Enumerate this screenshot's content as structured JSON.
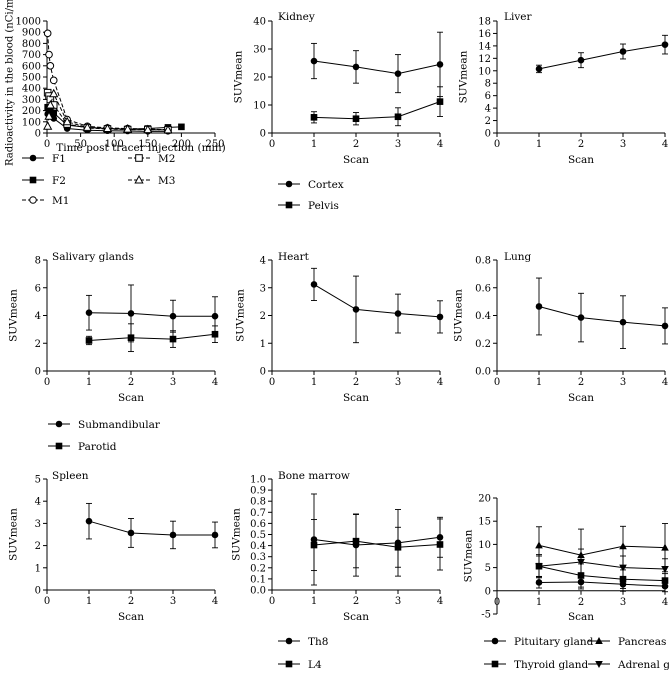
{
  "chart_data": [
    {
      "type": "line",
      "title": "",
      "xlabel": "Time post tracer injection (min)",
      "ylabel": "Radioactivity in the blood (nCi/mL)",
      "xlim": [
        0,
        250
      ],
      "ylim": [
        0,
        1000
      ],
      "xticks": [
        0,
        50,
        100,
        150,
        200,
        250
      ],
      "yticks": [
        0,
        100,
        200,
        300,
        400,
        500,
        600,
        700,
        800,
        900,
        1000
      ],
      "legend": [
        "F1",
        "M2",
        "F2",
        "M3",
        "M1"
      ],
      "series": [
        {
          "name": "F1",
          "marker": "circle",
          "line": "solid",
          "x": [
            1,
            3,
            5,
            10,
            30,
            60,
            90,
            120,
            150,
            180
          ],
          "y": [
            170,
            160,
            150,
            130,
            40,
            25,
            20,
            18,
            15,
            15
          ]
        },
        {
          "name": "F2",
          "marker": "square",
          "line": "solid",
          "x": [
            1,
            3,
            5,
            10,
            30,
            60,
            90,
            120,
            150,
            180,
            200
          ],
          "y": [
            230,
            220,
            210,
            180,
            70,
            50,
            40,
            35,
            40,
            50,
            55
          ]
        },
        {
          "name": "M1",
          "marker": "open-circle",
          "line": "dashed",
          "x": [
            1,
            3,
            5,
            10,
            30,
            60,
            90,
            120,
            150,
            180
          ],
          "y": [
            890,
            700,
            600,
            470,
            120,
            60,
            45,
            40,
            35,
            30
          ]
        },
        {
          "name": "M2",
          "marker": "open-square",
          "line": "dashed",
          "x": [
            1,
            3,
            5,
            10,
            30,
            60,
            90,
            120,
            150,
            180
          ],
          "y": [
            360,
            330,
            300,
            250,
            80,
            45,
            35,
            30,
            30,
            28
          ]
        },
        {
          "name": "M3",
          "marker": "open-triangle",
          "line": "dashed",
          "x": [
            1,
            3,
            5,
            10,
            30,
            60,
            90,
            120,
            150,
            180
          ],
          "y": [
            60,
            150,
            250,
            350,
            100,
            50,
            40,
            35,
            30,
            28
          ]
        }
      ]
    },
    {
      "type": "line",
      "title": "Kidney",
      "xlabel": "Scan",
      "ylabel": "SUVmean",
      "xlim": [
        0,
        4
      ],
      "ylim": [
        0,
        40
      ],
      "xticks": [
        0,
        1,
        2,
        3,
        4
      ],
      "yticks": [
        0,
        10,
        20,
        30,
        40
      ],
      "legend": [
        "Cortex",
        "Pelvis"
      ],
      "series": [
        {
          "name": "Cortex",
          "marker": "circle",
          "x": [
            1,
            2,
            3,
            4
          ],
          "y": [
            25.7,
            23.6,
            21.2,
            24.5
          ],
          "err": [
            6.3,
            5.8,
            6.8,
            11.5
          ]
        },
        {
          "name": "Pelvis",
          "marker": "square",
          "x": [
            1,
            2,
            3,
            4
          ],
          "y": [
            5.6,
            5.1,
            5.8,
            11.2
          ],
          "err": [
            2.0,
            2.2,
            3.2,
            5.3
          ]
        }
      ]
    },
    {
      "type": "line",
      "title": "Liver",
      "xlabel": "Scan",
      "ylabel": "SUVmean",
      "xlim": [
        0,
        4
      ],
      "ylim": [
        0,
        18
      ],
      "xticks": [
        0,
        1,
        2,
        3,
        4
      ],
      "yticks": [
        0,
        2,
        4,
        6,
        8,
        10,
        12,
        14,
        16,
        18
      ],
      "series": [
        {
          "name": "Liver",
          "marker": "circle",
          "x": [
            1,
            2,
            3,
            4
          ],
          "y": [
            10.3,
            11.7,
            13.1,
            14.2
          ],
          "err": [
            0.6,
            1.2,
            1.2,
            1.5
          ]
        }
      ]
    },
    {
      "type": "line",
      "title": "Salivary glands",
      "xlabel": "Scan",
      "ylabel": "SUVmean",
      "xlim": [
        0,
        4
      ],
      "ylim": [
        0,
        8
      ],
      "xticks": [
        0,
        1,
        2,
        3,
        4
      ],
      "yticks": [
        0,
        2,
        4,
        6,
        8
      ],
      "legend": [
        "Submandibular",
        "Parotid"
      ],
      "series": [
        {
          "name": "Submandibular",
          "marker": "circle",
          "x": [
            1,
            2,
            3,
            4
          ],
          "y": [
            4.2,
            4.15,
            3.95,
            3.95
          ],
          "err": [
            1.25,
            2.05,
            1.15,
            1.4
          ]
        },
        {
          "name": "Parotid",
          "marker": "square",
          "x": [
            1,
            2,
            3,
            4
          ],
          "y": [
            2.2,
            2.4,
            2.3,
            2.65
          ],
          "err": [
            0.3,
            1.0,
            0.6,
            0.6
          ]
        }
      ]
    },
    {
      "type": "line",
      "title": "Heart",
      "xlabel": "Scan",
      "ylabel": "SUVmean",
      "xlim": [
        0,
        4
      ],
      "ylim": [
        0,
        4
      ],
      "xticks": [
        0,
        1,
        2,
        3,
        4
      ],
      "yticks": [
        0,
        1,
        2,
        3,
        4
      ],
      "series": [
        {
          "name": "Heart",
          "marker": "circle",
          "x": [
            1,
            2,
            3,
            4
          ],
          "y": [
            3.12,
            2.22,
            2.07,
            1.95
          ],
          "err": [
            0.58,
            1.2,
            0.7,
            0.58
          ]
        }
      ]
    },
    {
      "type": "line",
      "title": "Lung",
      "xlabel": "Scan",
      "ylabel": "SUVmean",
      "xlim": [
        0,
        4
      ],
      "ylim": [
        0,
        0.8
      ],
      "xticks": [
        0,
        1,
        2,
        3,
        4
      ],
      "yticks": [
        0.0,
        0.2,
        0.4,
        0.6,
        0.8
      ],
      "series": [
        {
          "name": "Lung",
          "marker": "circle",
          "x": [
            1,
            2,
            3,
            4
          ],
          "y": [
            0.465,
            0.385,
            0.352,
            0.325
          ],
          "err": [
            0.205,
            0.175,
            0.19,
            0.13
          ]
        }
      ]
    },
    {
      "type": "line",
      "title": "Spleen",
      "xlabel": "Scan",
      "ylabel": "SUVmean",
      "xlim": [
        0,
        4
      ],
      "ylim": [
        0,
        5
      ],
      "xticks": [
        0,
        1,
        2,
        3,
        4
      ],
      "yticks": [
        0,
        1,
        2,
        3,
        4,
        5
      ],
      "series": [
        {
          "name": "Spleen",
          "marker": "circle",
          "x": [
            1,
            2,
            3,
            4
          ],
          "y": [
            3.1,
            2.57,
            2.48,
            2.48
          ],
          "err": [
            0.8,
            0.65,
            0.62,
            0.58
          ]
        }
      ]
    },
    {
      "type": "line",
      "title": "Bone marrow",
      "xlabel": "Scan",
      "ylabel": "SUVmean",
      "xlim": [
        0,
        4
      ],
      "ylim": [
        0,
        1.0
      ],
      "xticks": [
        0,
        1,
        2,
        3,
        4
      ],
      "yticks": [
        0.0,
        0.1,
        0.2,
        0.3,
        0.4,
        0.5,
        0.6,
        0.7,
        0.8,
        0.9,
        1.0
      ],
      "legend": [
        "Th8",
        "L4"
      ],
      "series": [
        {
          "name": "Th8",
          "marker": "circle",
          "x": [
            1,
            2,
            3,
            4
          ],
          "y": [
            0.455,
            0.405,
            0.425,
            0.475
          ],
          "err": [
            0.41,
            0.28,
            0.3,
            0.18
          ]
        },
        {
          "name": "L4",
          "marker": "square",
          "x": [
            1,
            2,
            3,
            4
          ],
          "y": [
            0.405,
            0.44,
            0.385,
            0.41
          ],
          "err": [
            0.23,
            0.24,
            0.18,
            0.23
          ]
        }
      ]
    },
    {
      "type": "line",
      "title": "",
      "xlabel": "Scan",
      "ylabel": "SUVmean",
      "xlim": [
        0,
        4
      ],
      "ylim": [
        -5,
        20
      ],
      "xticks": [
        0,
        1,
        2,
        3,
        4
      ],
      "yticks": [
        -5,
        0,
        5,
        10,
        15,
        20
      ],
      "legend": [
        "Pituitary gland",
        "Pancreas",
        "Thyroid gland",
        "Adrenal gland"
      ],
      "series": [
        {
          "name": "Pituitary gland",
          "marker": "circle",
          "x": [
            1,
            2,
            3,
            4
          ],
          "y": [
            1.8,
            1.9,
            1.4,
            1.0
          ],
          "err": [
            1.2,
            1.5,
            1.5,
            1.2
          ]
        },
        {
          "name": "Pancreas",
          "marker": "triangle-up",
          "x": [
            1,
            2,
            3,
            4
          ],
          "y": [
            9.8,
            7.7,
            9.6,
            9.3
          ],
          "err": [
            4.0,
            5.6,
            4.3,
            5.2
          ]
        },
        {
          "name": "Thyroid gland",
          "marker": "square",
          "x": [
            1,
            2,
            3,
            4
          ],
          "y": [
            5.3,
            3.3,
            2.5,
            2.2
          ],
          "err": [
            2.5,
            2.5,
            2.0,
            1.5
          ]
        },
        {
          "name": "Adrenal gland",
          "marker": "triangle-down",
          "x": [
            1,
            2,
            3,
            4
          ],
          "y": [
            5.3,
            6.2,
            5.0,
            4.7
          ],
          "err": [
            2.2,
            2.8,
            2.5,
            2.2
          ]
        }
      ]
    }
  ]
}
